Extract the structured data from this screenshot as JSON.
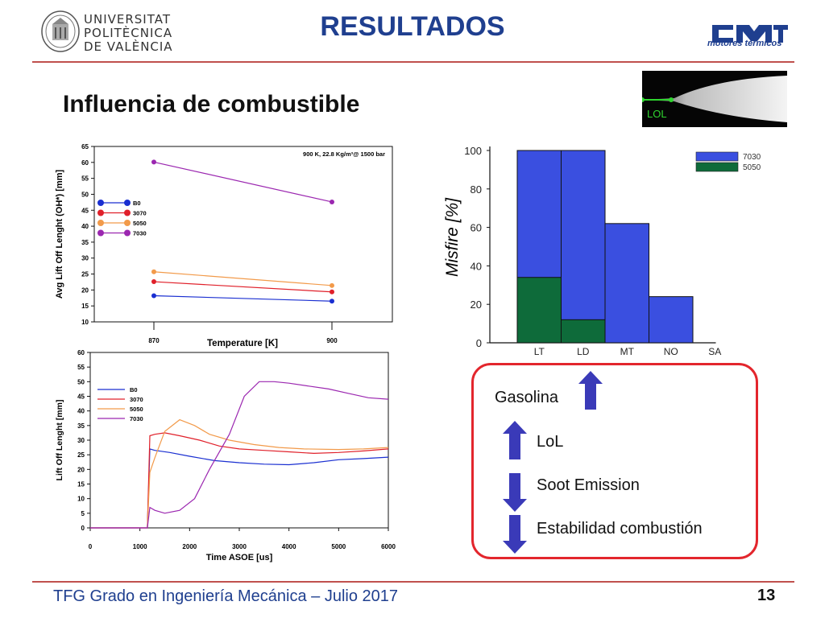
{
  "header": {
    "university_lines": [
      "UNIVERSITAT",
      "POLITÈCNICA",
      "DE VALÈNCIA"
    ],
    "title": "RESULTADOS",
    "brand_sub": "motores térmicos"
  },
  "slide": {
    "subtitle": "Influencia de combustible",
    "footer": "TFG Grado en Ingeniería Mecánica – Julio 2017",
    "page_number": "13"
  },
  "lol_image": {
    "label": "LOL"
  },
  "summary_box": {
    "items": [
      {
        "text": "Gasolina",
        "arrow": "up"
      },
      {
        "text": "LoL",
        "arrow": "up"
      },
      {
        "text": "Soot Emission",
        "arrow": "down"
      },
      {
        "text": "Estabilidad combustión",
        "arrow": "down"
      }
    ],
    "colors": {
      "border": "#e3262d",
      "arrow": "#3a3ab8"
    }
  },
  "chart_data": [
    {
      "type": "line",
      "annotation": "900 K, 22.8 Kg/m³@ 1500 bar",
      "xlabel": "Temperature [K]",
      "ylabel": "Avg Lift Off Lenght (OH*) [mm]",
      "categories": [
        "870",
        "900"
      ],
      "ylim": [
        10,
        65
      ],
      "yticks": [
        10,
        15,
        20,
        25,
        30,
        35,
        40,
        45,
        50,
        55,
        60,
        65
      ],
      "series": [
        {
          "name": "B0",
          "color": "#1a2fd1",
          "values": [
            18.2,
            16.5
          ]
        },
        {
          "name": "3070",
          "color": "#e0202a",
          "values": [
            22.6,
            19.4
          ]
        },
        {
          "name": "5050",
          "color": "#f29a4a",
          "values": [
            25.7,
            21.4
          ]
        },
        {
          "name": "7030",
          "color": "#9b27b0",
          "values": [
            60.1,
            47.6
          ]
        }
      ]
    },
    {
      "type": "line",
      "xlabel": "Time ASOE [us]",
      "ylabel": "Lift Off Lenght [mm]",
      "xlim": [
        0,
        6000
      ],
      "ylim": [
        0,
        60
      ],
      "xticks": [
        0,
        1000,
        2000,
        3000,
        4000,
        5000,
        6000
      ],
      "yticks": [
        0,
        5,
        10,
        15,
        20,
        25,
        30,
        35,
        40,
        45,
        50,
        55,
        60
      ],
      "series": [
        {
          "name": "B0",
          "color": "#1a2fd1",
          "x": [
            0,
            1150,
            1200,
            1300,
            1600,
            2000,
            2500,
            3000,
            3500,
            4000,
            4500,
            5000,
            5500,
            6000
          ],
          "y": [
            0,
            0,
            27,
            26.5,
            25.8,
            24.5,
            23,
            22.3,
            21.8,
            21.6,
            22.3,
            23.3,
            23.7,
            24.2
          ]
        },
        {
          "name": "3070",
          "color": "#e0202a",
          "x": [
            0,
            1150,
            1200,
            1300,
            1500,
            1800,
            2200,
            2600,
            3000,
            3500,
            4000,
            4500,
            5000,
            5500,
            6000
          ],
          "y": [
            0,
            0,
            31.5,
            32,
            32.5,
            31.5,
            30,
            28,
            27,
            26.5,
            26,
            25.5,
            25.8,
            26.3,
            27
          ]
        },
        {
          "name": "5050",
          "color": "#f29a4a",
          "x": [
            0,
            1150,
            1200,
            1300,
            1500,
            1800,
            2100,
            2400,
            2800,
            3300,
            3800,
            4300,
            5000,
            5500,
            6000
          ],
          "y": [
            0,
            0,
            19,
            24,
            33,
            37,
            35,
            32,
            30,
            28.5,
            27.5,
            27,
            26.8,
            27,
            27.5
          ]
        },
        {
          "name": "7030",
          "color": "#9b27b0",
          "x": [
            0,
            1150,
            1200,
            1300,
            1500,
            1800,
            2100,
            2400,
            2800,
            3100,
            3400,
            3700,
            4000,
            4400,
            4800,
            5200,
            5600,
            6000
          ],
          "y": [
            0,
            0,
            7,
            6,
            5,
            6,
            10,
            20,
            32,
            45,
            50,
            50,
            49.5,
            48.5,
            47.5,
            46,
            44.5,
            44
          ]
        }
      ]
    },
    {
      "type": "bar",
      "ylabel": "Misfire [%]",
      "categories": [
        "LT",
        "LD",
        "MT",
        "NO",
        "SA"
      ],
      "ylim": [
        0,
        100
      ],
      "yticks": [
        0,
        20,
        40,
        60,
        80,
        100
      ],
      "series": [
        {
          "name": "7030",
          "color": "#3a4fe0",
          "values": [
            100,
            100,
            62,
            24,
            0
          ]
        },
        {
          "name": "5050",
          "color": "#0e6b3a",
          "values": [
            34,
            12,
            0,
            0,
            0
          ]
        }
      ]
    }
  ]
}
